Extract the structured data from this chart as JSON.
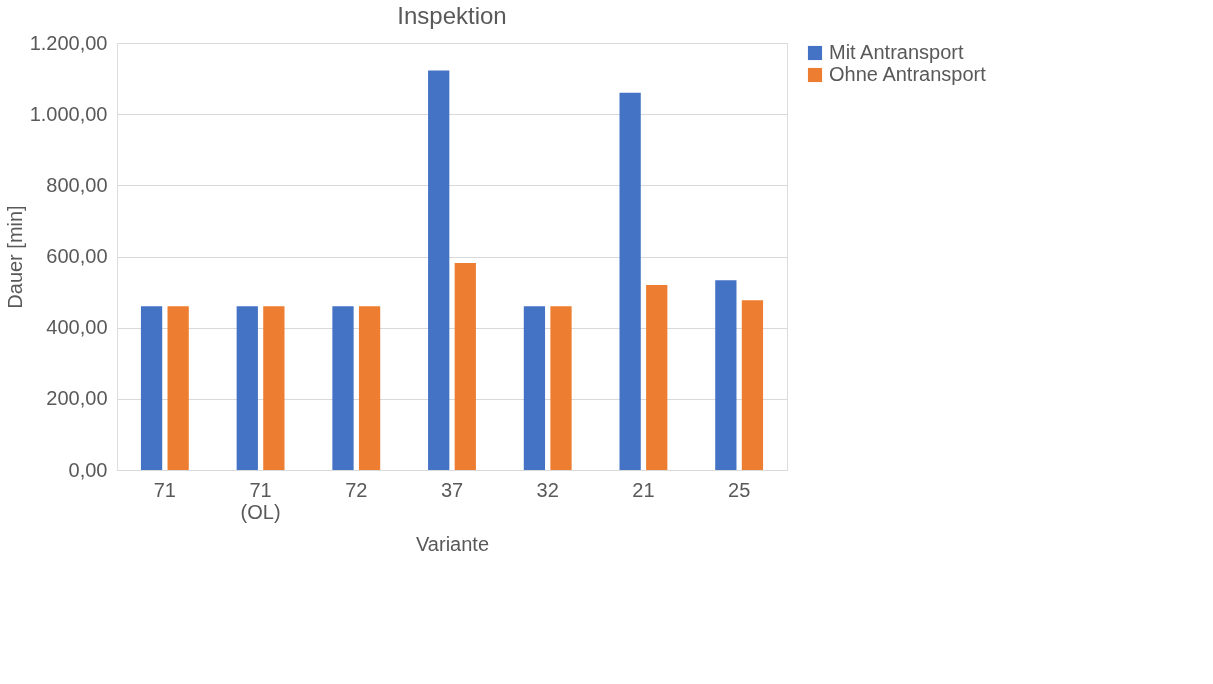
{
  "chart_data": {
    "type": "bar",
    "title": "Inspektion",
    "xlabel": "Variante",
    "ylabel": "Dauer [min]",
    "categories": [
      "71",
      "71 (OL)",
      "72",
      "37",
      "32",
      "21",
      "25"
    ],
    "series": [
      {
        "name": "Mit Antransport",
        "color": "#4472c4",
        "values": [
          460,
          460,
          460,
          1123,
          460,
          1060,
          533
        ]
      },
      {
        "name": "Ohne Antransport",
        "color": "#ed7d31",
        "values": [
          460,
          460,
          460,
          582,
          460,
          520,
          477
        ]
      }
    ],
    "ylim": [
      0,
      1200
    ],
    "yticks": [
      {
        "value": 0,
        "label": "0,00"
      },
      {
        "value": 200,
        "label": "200,00"
      },
      {
        "value": 400,
        "label": "400,00"
      },
      {
        "value": 600,
        "label": "600,00"
      },
      {
        "value": 800,
        "label": "800,00"
      },
      {
        "value": 1000,
        "label": "1.000,00"
      },
      {
        "value": 1200,
        "label": "1.200,00"
      }
    ],
    "grid": "y",
    "legend": "right"
  }
}
